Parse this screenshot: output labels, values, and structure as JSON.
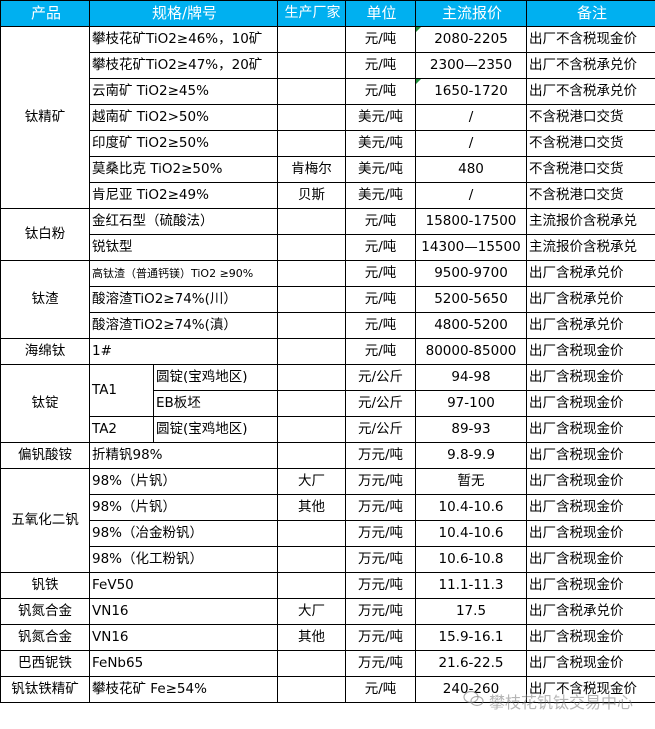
{
  "header": {
    "product": "产品",
    "spec": "规格/牌号",
    "maker": "生产厂家",
    "unit": "单位",
    "price": "主流报价",
    "note": "备注"
  },
  "header_color": "#00b0f0",
  "groups": [
    {
      "product": "钛精矿",
      "items": [
        {
          "spec": "攀枝花矿TiO2≥46%，10矿",
          "maker": "",
          "unit": "元/吨",
          "price": "2080-2205",
          "note": "出厂不含税现金价",
          "marked": true
        },
        {
          "spec": "攀枝花矿TiO2≥47%，20矿",
          "maker": "",
          "unit": "元/吨",
          "price": "2300—2350",
          "note": "出厂不含税承兑价"
        },
        {
          "spec": "云南矿 TiO2≥45%",
          "maker": "",
          "unit": "元/吨",
          "price": "1650-1720",
          "note": "出厂不含税承兑价",
          "marked": true
        },
        {
          "spec": "越南矿 TiO2>50%",
          "maker": "",
          "unit": "美元/吨",
          "price": "/",
          "note": "不含税港口交货"
        },
        {
          "spec": "印度矿 TiO2≥50%",
          "maker": "",
          "unit": "美元/吨",
          "price": "/",
          "note": "不含税港口交货"
        },
        {
          "spec": "莫桑比克 TiO2≥50%",
          "maker": "肯梅尔",
          "unit": "美元/吨",
          "price": "480",
          "note": "不含税港口交货"
        },
        {
          "spec": "肯尼亚 TiO2≥49%",
          "maker": "贝斯",
          "unit": "美元/吨",
          "price": "/",
          "note": "不含税港口交货"
        }
      ]
    },
    {
      "product": "钛白粉",
      "items": [
        {
          "spec": "金红石型（硫酸法）",
          "maker": "",
          "unit": "元/吨",
          "price": "15800-17500",
          "note": "主流报价含税承兑"
        },
        {
          "spec": "锐钛型",
          "maker": "",
          "unit": "元/吨",
          "price": "14300—15500",
          "note": "主流报价含税承兑"
        }
      ]
    },
    {
      "product": "钛渣",
      "items": [
        {
          "spec": "高钛渣（普通钙镁）TiO2 ≥90%",
          "maker": "",
          "unit": "元/吨",
          "price": "9500-9700",
          "note": "出厂含税承兑价",
          "small": true
        },
        {
          "spec": "酸溶渣TiO2≥74%(川）",
          "maker": "",
          "unit": "元/吨",
          "price": "5200-5650",
          "note": "出厂含税承兑价"
        },
        {
          "spec": "酸溶渣TiO2≥74%(滇）",
          "maker": "",
          "unit": "元/吨",
          "price": "4800-5200",
          "note": "出厂含税承兑价"
        }
      ]
    },
    {
      "product": "海绵钛",
      "items": [
        {
          "spec": "1#",
          "maker": "",
          "unit": "元/吨",
          "price": "80000-85000",
          "note": "出厂含税现金价"
        }
      ]
    },
    {
      "product": "钛锭",
      "items": [
        {
          "grade": "TA1",
          "spec": "圆锭(宝鸡地区)",
          "maker": "",
          "unit": "元/公斤",
          "price": "94-98",
          "note": "出厂含税现金价"
        },
        {
          "grade": "TA1",
          "spec": "EB板坯",
          "maker": "",
          "unit": "元/公斤",
          "price": "97-100",
          "note": "出厂含税现金价"
        },
        {
          "grade": "TA2",
          "spec": "圆锭(宝鸡地区)",
          "maker": "",
          "unit": "元/公斤",
          "price": "89-93",
          "note": "出厂含税现金价"
        }
      ]
    },
    {
      "product": "偏钒酸铵",
      "items": [
        {
          "spec": "折精钒98%",
          "maker": "",
          "unit": "万元/吨",
          "price": "9.8-9.9",
          "note": "出厂含税现金价"
        }
      ]
    },
    {
      "product": "五氧化二钒",
      "items": [
        {
          "spec": "98%（片钒）",
          "maker": "大厂",
          "unit": "万元/吨",
          "price": "暂无",
          "note": "出厂含税现金价"
        },
        {
          "spec": "98%（片钒）",
          "maker": "其他",
          "unit": "万元/吨",
          "price": "10.4-10.6",
          "note": "出厂含税现金价"
        },
        {
          "spec": "98%（冶金粉钒）",
          "maker": "",
          "unit": "万元/吨",
          "price": "10.4-10.6",
          "note": "出厂含税现金价"
        },
        {
          "spec": "98%（化工粉钒）",
          "maker": "",
          "unit": "万元/吨",
          "price": "10.6-10.8",
          "note": "出厂含税现金价"
        }
      ]
    },
    {
      "product": "钒铁",
      "items": [
        {
          "spec": "FeV50",
          "maker": "",
          "unit": "万元/吨",
          "price": "11.1-11.3",
          "note": "出厂含税现金价"
        }
      ]
    },
    {
      "product": "钒氮合金",
      "items": [
        {
          "spec": "VN16",
          "maker": "大厂",
          "unit": "万元/吨",
          "price": "17.5",
          "note": "出厂含税承兑价"
        }
      ]
    },
    {
      "product": "钒氮合金",
      "items": [
        {
          "spec": "VN16",
          "maker": "其他",
          "unit": "万元/吨",
          "price": "15.9-16.1",
          "note": "出厂含税现金价"
        }
      ]
    },
    {
      "product": "巴西铌铁",
      "items": [
        {
          "spec": "FeNb65",
          "maker": "",
          "unit": "万元/吨",
          "price": "21.6-22.5",
          "note": "出厂含税现金价"
        }
      ]
    },
    {
      "product": "钒钛铁精矿",
      "items": [
        {
          "spec": "攀枝花矿 Fe≥54%",
          "maker": "",
          "unit": "元/吨",
          "price": "240-260",
          "note": "出厂不含税现金价"
        }
      ]
    }
  ],
  "watermark": {
    "icon": "wechat-icon",
    "text": "攀枝花钒钛交易中心"
  }
}
